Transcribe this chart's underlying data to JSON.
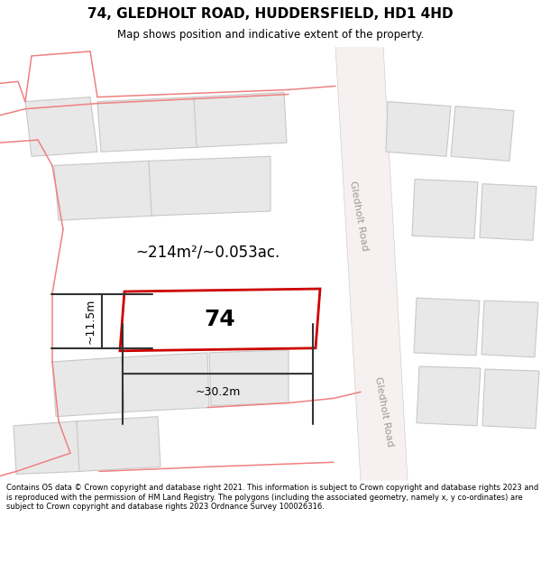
{
  "title": "74, GLEDHOLT ROAD, HUDDERSFIELD, HD1 4HD",
  "subtitle": "Map shows position and indicative extent of the property.",
  "footer": "Contains OS data © Crown copyright and database right 2021. This information is subject to Crown copyright and database rights 2023 and is reproduced with the permission of HM Land Registry. The polygons (including the associated geometry, namely x, y co-ordinates) are subject to Crown copyright and database rights 2023 Ordnance Survey 100026316.",
  "background_color": "#ffffff",
  "building_fill": "#e8e8e8",
  "building_edge": "#c8c8c8",
  "road_fill": "#f7f0f0",
  "road_edge": "#e8c0c0",
  "pink_line_color": "#f08080",
  "property_rect_color": "#cc0000",
  "property_label": "74",
  "area_label": "~214m²/~0.053ac.",
  "width_label": "~30.2m",
  "height_label": "~11.5m",
  "road_label": "Gledholt Road",
  "measure_color": "#333333"
}
